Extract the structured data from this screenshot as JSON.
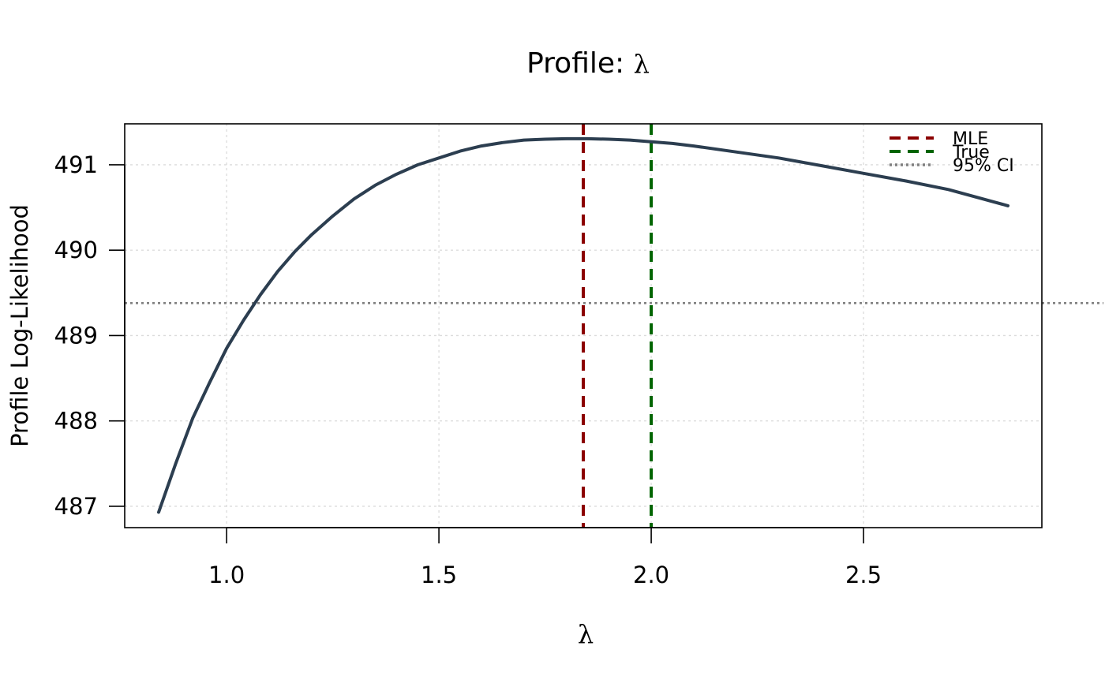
{
  "chart_data": {
    "type": "line",
    "title": "Profile: ",
    "title_symbol": "λ",
    "xlabel": "λ",
    "ylabel": "Profile Log-Likelihood",
    "xlim": [
      0.76,
      2.92
    ],
    "ylim": [
      486.75,
      491.48
    ],
    "x_ticks": [
      1.0,
      1.5,
      2.0,
      2.5
    ],
    "x_tick_labels": [
      "1.0",
      "1.5",
      "2.0",
      "2.5"
    ],
    "y_ticks": [
      487,
      488,
      489,
      490,
      491
    ],
    "y_tick_labels": [
      "487",
      "488",
      "489",
      "490",
      "491"
    ],
    "grid": true,
    "legend_position": "top-right",
    "series": [
      {
        "name": "",
        "color": "#2c3e50",
        "x": [
          0.84,
          0.88,
          0.92,
          0.96,
          1.0,
          1.04,
          1.08,
          1.12,
          1.16,
          1.2,
          1.25,
          1.3,
          1.35,
          1.4,
          1.45,
          1.5,
          1.55,
          1.6,
          1.65,
          1.7,
          1.75,
          1.8,
          1.85,
          1.9,
          1.95,
          2.0,
          2.05,
          2.1,
          2.2,
          2.3,
          2.4,
          2.5,
          2.6,
          2.7,
          2.84
        ],
        "y": [
          486.93,
          487.5,
          488.03,
          488.45,
          488.85,
          489.18,
          489.48,
          489.75,
          489.98,
          490.18,
          490.4,
          490.6,
          490.76,
          490.89,
          491.0,
          491.08,
          491.16,
          491.22,
          491.26,
          491.29,
          491.3,
          491.305,
          491.305,
          491.3,
          491.29,
          491.27,
          491.25,
          491.22,
          491.15,
          491.08,
          490.99,
          490.9,
          490.81,
          490.71,
          490.52
        ]
      }
    ],
    "reference_lines": [
      {
        "name": "MLE",
        "orientation": "vertical",
        "value": 1.84,
        "color": "#8b0000",
        "style": "dashed"
      },
      {
        "name": "True",
        "orientation": "vertical",
        "value": 2.0,
        "color": "#006400",
        "style": "dashed"
      },
      {
        "name": "95% CI",
        "orientation": "horizontal",
        "value": 489.38,
        "color": "#808080",
        "style": "dotted"
      }
    ],
    "legend": [
      {
        "label": "MLE",
        "color": "#8b0000",
        "style": "dashed"
      },
      {
        "label": "True",
        "color": "#006400",
        "style": "dashed"
      },
      {
        "label": "95% CI",
        "color": "#808080",
        "style": "dotted"
      }
    ]
  }
}
